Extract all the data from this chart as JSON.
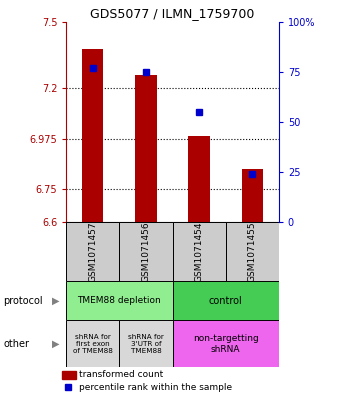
{
  "title": "GDS5077 / ILMN_1759700",
  "samples": [
    "GSM1071457",
    "GSM1071456",
    "GSM1071454",
    "GSM1071455"
  ],
  "red_values": [
    7.375,
    7.26,
    6.985,
    6.84
  ],
  "blue_values": [
    77,
    75,
    55,
    24
  ],
  "ylim": [
    6.6,
    7.5
  ],
  "yticks_left": [
    6.6,
    6.75,
    6.975,
    7.2,
    7.5
  ],
  "yticks_right": [
    0,
    25,
    50,
    75,
    100
  ],
  "ytick_labels_left": [
    "6.6",
    "6.75",
    "6.975",
    "7.2",
    "7.5"
  ],
  "ytick_labels_right": [
    "0",
    "25",
    "50",
    "75",
    "100%"
  ],
  "hlines": [
    6.75,
    6.975,
    7.2
  ],
  "bar_bottom": 6.6,
  "protocol_labels": [
    "TMEM88 depletion",
    "control"
  ],
  "other_labels": [
    "shRNA for\nfirst exon\nof TMEM88",
    "shRNA for\n3'UTR of\nTMEM88",
    "non-targetting\nshRNA"
  ],
  "protocol_colors": [
    "#90ee90",
    "#44cc55"
  ],
  "other_colors": [
    "#d8d8d8",
    "#d8d8d8",
    "#ee66ee"
  ],
  "red_color": "#aa0000",
  "blue_color": "#0000cc",
  "bar_width": 0.4,
  "blue_marker_size": 5,
  "label_bg": "#cccccc",
  "fig_width": 3.4,
  "fig_height": 3.93,
  "dpi": 100
}
